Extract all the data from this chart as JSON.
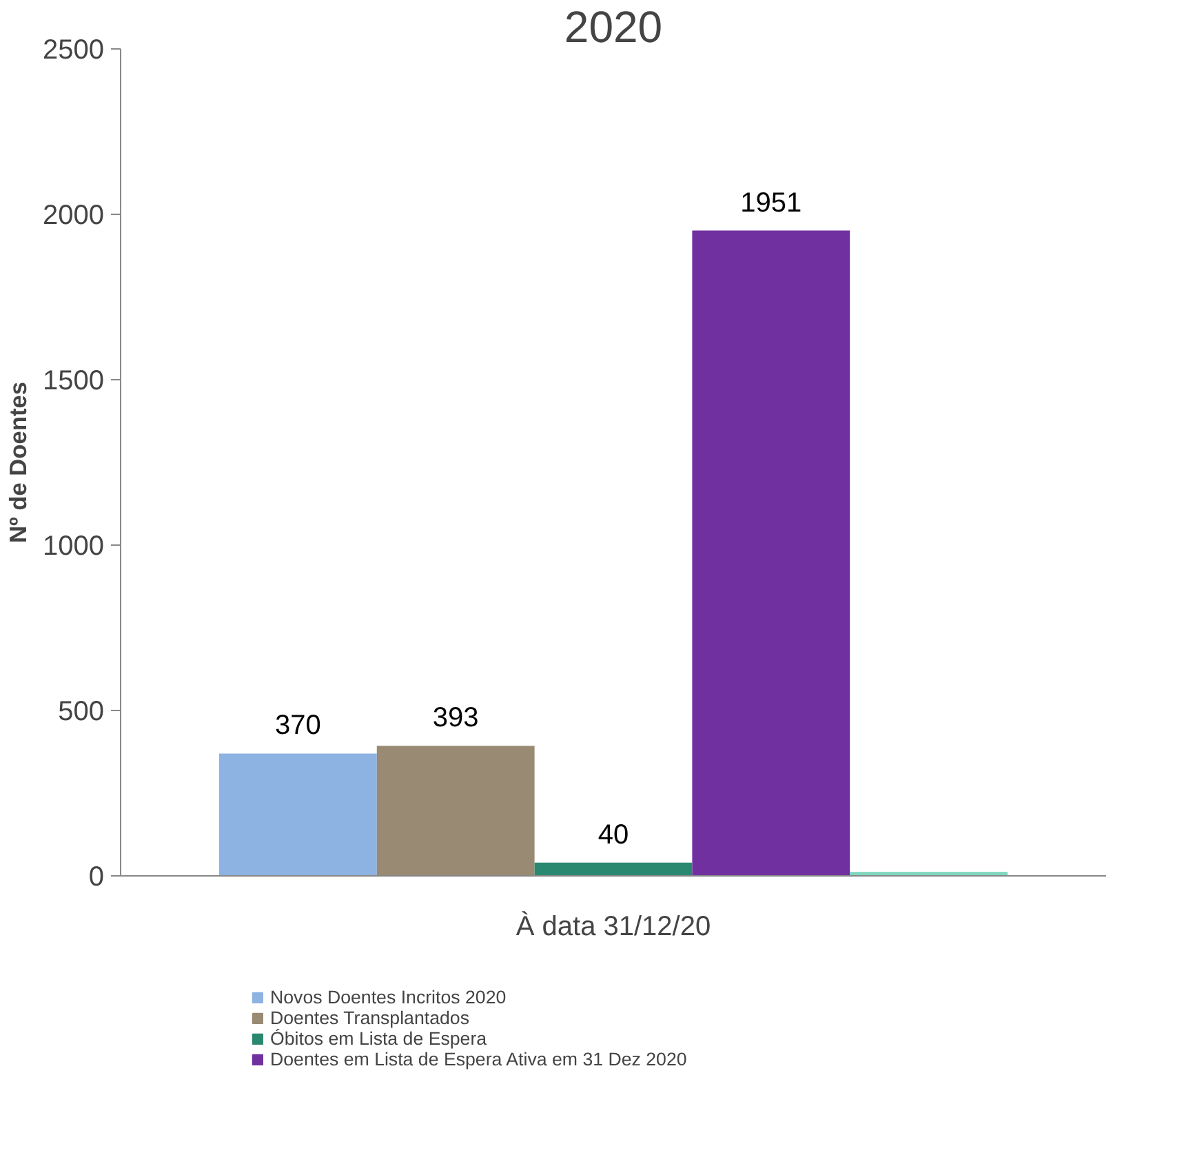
{
  "chart_data": {
    "type": "bar",
    "title": "2020",
    "ylabel": "Nº de Doentes",
    "categories": [
      "À data 31/12/20"
    ],
    "ylim": [
      0,
      2500
    ],
    "yticks": [
      0,
      500,
      1000,
      1500,
      2000,
      2500
    ],
    "grid": false,
    "legend": "bottom",
    "series": [
      {
        "name": "Novos Doentes Incritos 2020",
        "color": "#8db3e2",
        "values": [
          370
        ],
        "value_labels": [
          "370"
        ]
      },
      {
        "name": "Doentes Transplantados",
        "color": "#998a73",
        "values": [
          393
        ],
        "value_labels": [
          "393"
        ]
      },
      {
        "name": "Óbitos em Lista de Espera",
        "color": "#2b8870",
        "values": [
          40
        ],
        "value_labels": [
          "40"
        ]
      },
      {
        "name": "Doentes em Lista de Espera Ativa em 31 Dez 2020",
        "color": "#7030a0",
        "values": [
          1951
        ],
        "value_labels": [
          "1951"
        ]
      },
      {
        "color": "#7dd6bd",
        "values": [
          12
        ],
        "value_labels": [
          null
        ]
      }
    ]
  }
}
